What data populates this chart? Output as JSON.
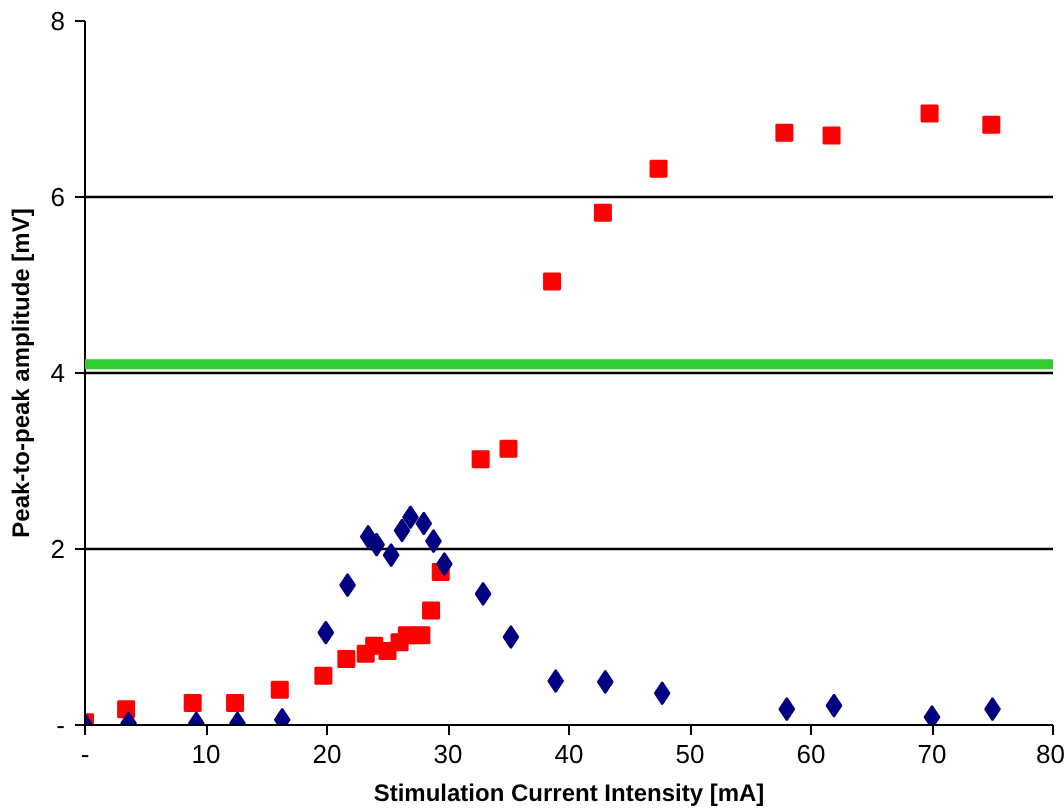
{
  "chart_data": {
    "type": "scatter",
    "xlabel": "Stimulation Current Intensity [mA]",
    "ylabel": "Peak-to-peak amplitude [mV]",
    "xlim": [
      0,
      80
    ],
    "xticks": [
      {
        "value": 0,
        "label": "-"
      },
      10,
      20,
      30,
      40,
      50,
      60,
      70,
      80
    ],
    "ylim": [
      0,
      8
    ],
    "yticks": [
      {
        "value": 0,
        "label": "-"
      },
      2,
      4,
      6,
      8
    ],
    "grid": "y",
    "series": [
      {
        "color": "#ff0000",
        "marker": "square",
        "x": [
          0,
          3.4,
          8.9,
          12.4,
          16.1,
          19.7,
          21.6,
          23.2,
          23.9,
          25.0,
          26.0,
          26.6,
          27.8,
          28.6,
          29.4,
          32.7,
          35.0,
          38.6,
          42.8,
          47.4,
          57.8,
          61.7,
          69.8,
          74.9
        ],
        "values": [
          0.03,
          0.18,
          0.25,
          0.25,
          0.4,
          0.56,
          0.75,
          0.81,
          0.9,
          0.84,
          0.94,
          1.02,
          1.02,
          1.3,
          1.74,
          3.02,
          3.14,
          5.04,
          5.82,
          6.32,
          6.73,
          6.7,
          6.95,
          6.82
        ]
      },
      {
        "color": "#000080",
        "marker": "diamond",
        "x": [
          0,
          3.6,
          9.2,
          12.6,
          16.3,
          19.9,
          21.7,
          23.4,
          24.1,
          25.3,
          26.2,
          26.9,
          28.0,
          28.8,
          29.7,
          32.9,
          35.2,
          38.9,
          43.0,
          47.7,
          58.0,
          61.9,
          70.0,
          75.0
        ],
        "values": [
          0,
          0.02,
          0.02,
          0.02,
          0.06,
          1.05,
          1.59,
          2.14,
          2.05,
          1.93,
          2.21,
          2.36,
          2.29,
          2.09,
          1.83,
          1.49,
          1.0,
          0.5,
          0.49,
          0.36,
          0.18,
          0.22,
          0.09,
          0.18
        ]
      }
    ],
    "ref_lines": [
      {
        "axis": "y",
        "value": 4.1,
        "color": "#33cc33"
      }
    ]
  }
}
